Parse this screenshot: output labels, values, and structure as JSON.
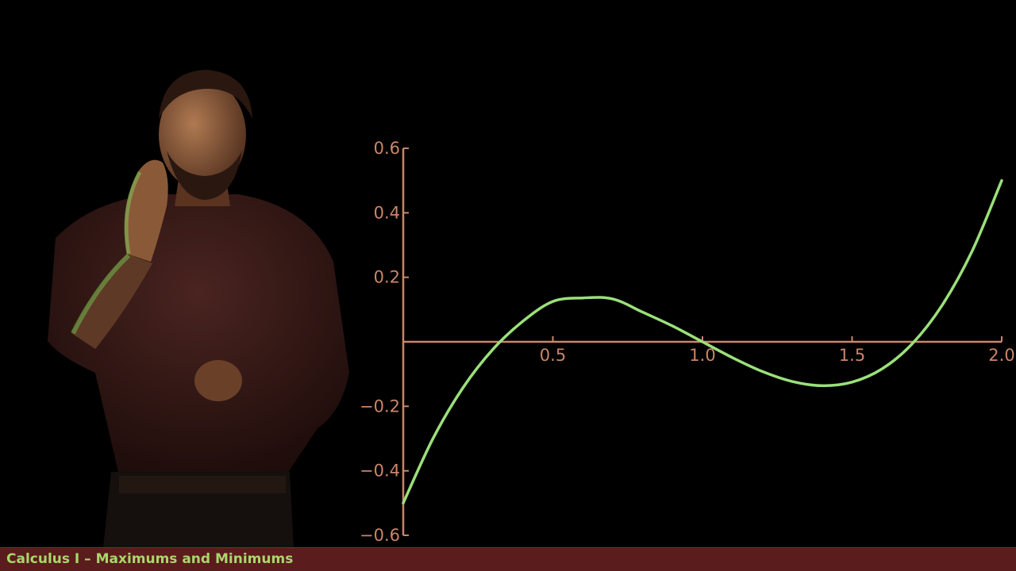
{
  "colors": {
    "background": "#000000",
    "axis": "#c8866a",
    "curve": "#9be07a",
    "footer_bg": "#5a1c1c",
    "footer_text": "#a8d86a"
  },
  "footer": {
    "title": "Calculus I – Maximums and Minimums"
  },
  "chart_data": {
    "type": "line",
    "title": "",
    "xlabel": "",
    "ylabel": "",
    "xlim": [
      0,
      2.0
    ],
    "ylim": [
      -0.6,
      0.6
    ],
    "grid": false,
    "legend": "none",
    "x_ticks": [
      {
        "value": 0.5,
        "label": "0.5"
      },
      {
        "value": 1.0,
        "label": "1.0"
      },
      {
        "value": 1.5,
        "label": "1.5"
      },
      {
        "value": 2.0,
        "label": "2.0"
      }
    ],
    "y_ticks": [
      {
        "value": 0.6,
        "label": "0.6"
      },
      {
        "value": 0.4,
        "label": "0.4"
      },
      {
        "value": 0.2,
        "label": "0.2"
      },
      {
        "value": -0.2,
        "label": "−0.2"
      },
      {
        "value": -0.4,
        "label": "−0.4"
      },
      {
        "value": -0.6,
        "label": "−0.6"
      }
    ],
    "series": [
      {
        "x": [
          0.0,
          0.1,
          0.2,
          0.3,
          0.4,
          0.5,
          0.6,
          0.7,
          0.8,
          0.9,
          1.0,
          1.1,
          1.2,
          1.3,
          1.4,
          1.5,
          1.6,
          1.7,
          1.8,
          1.9,
          2.0
        ],
        "y": [
          -0.5,
          -0.299,
          -0.142,
          -0.023,
          0.064,
          0.125,
          0.136,
          0.133,
          0.092,
          0.049,
          0.0,
          -0.049,
          -0.092,
          -0.123,
          -0.136,
          -0.125,
          -0.084,
          -0.007,
          0.112,
          0.279,
          0.5
        ]
      }
    ]
  }
}
